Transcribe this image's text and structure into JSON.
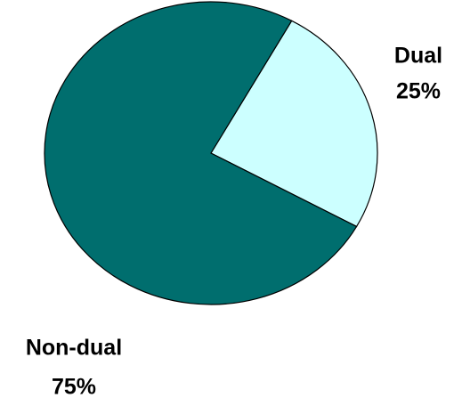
{
  "chart_data": {
    "type": "pie",
    "categories": [
      "Dual",
      "Non-dual"
    ],
    "values": [
      25,
      75
    ],
    "value_labels": [
      "25%",
      "75%"
    ],
    "colors": [
      "#ccffff",
      "#006e6e"
    ]
  }
}
